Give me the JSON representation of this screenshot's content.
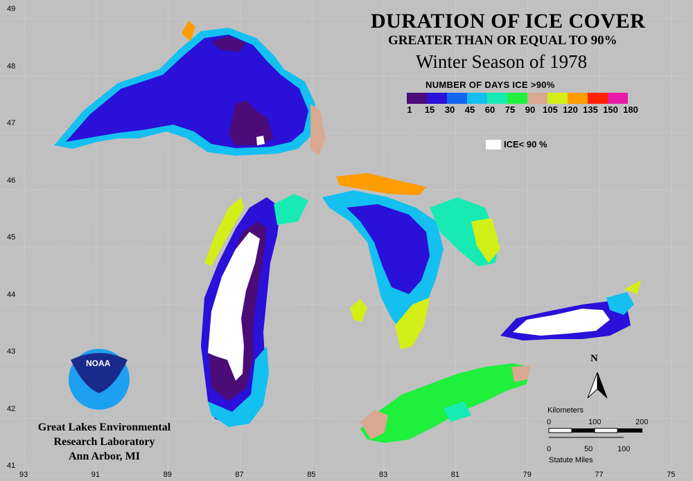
{
  "title": {
    "main": "DURATION OF ICE COVER",
    "sub": "GREATER THAN OR EQUAL TO 90%",
    "season": "Winter Season of 1978"
  },
  "legend": {
    "title": "NUMBER OF DAYS ICE >90%",
    "tick_labels": [
      "1",
      "15",
      "30",
      "45",
      "60",
      "75",
      "90",
      "105",
      "120",
      "135",
      "150",
      "180"
    ],
    "classes": [
      {
        "range": "1-15",
        "color": "#4b0c78"
      },
      {
        "range": "15-30",
        "color": "#2a10d8"
      },
      {
        "range": "30-45",
        "color": "#1466f0"
      },
      {
        "range": "45-60",
        "color": "#14c0f0"
      },
      {
        "range": "60-75",
        "color": "#18eab4"
      },
      {
        "range": "75-90",
        "color": "#1ef03c"
      },
      {
        "range": "90-105",
        "color": "#d8a890"
      },
      {
        "range": "105-120",
        "color": "#d4ee18"
      },
      {
        "range": "120-135",
        "color": "#ff9c00"
      },
      {
        "range": "135-150",
        "color": "#ff2200"
      },
      {
        "range": "150-180",
        "color": "#e81ca8"
      }
    ],
    "ice_less_label": "ICE< 90 %",
    "ice_less_color": "#ffffff"
  },
  "axes": {
    "lon_labels": [
      "93",
      "91",
      "89",
      "87",
      "85",
      "83",
      "81",
      "79",
      "77",
      "75"
    ],
    "lat_labels": [
      "49",
      "48",
      "47",
      "46",
      "45",
      "44",
      "43",
      "42",
      "41"
    ]
  },
  "organization": {
    "line1": "Great Lakes Environmental",
    "line2": "Research Laboratory",
    "line3": "Ann Arbor, MI",
    "logo_text": "NOAA"
  },
  "scale_bar": {
    "km_label": "Kilometers",
    "km_ticks": [
      "0",
      "100",
      "200"
    ],
    "mi_ticks": [
      "0",
      "50",
      "100"
    ],
    "mi_label": "Statute Miles"
  },
  "north_arrow": {
    "label": "N"
  },
  "colors": {
    "background": "#c0c0c0",
    "grid": "#ffffff",
    "logo_blue": "#1ea0f0",
    "logo_navy": "#1a2a8c"
  }
}
